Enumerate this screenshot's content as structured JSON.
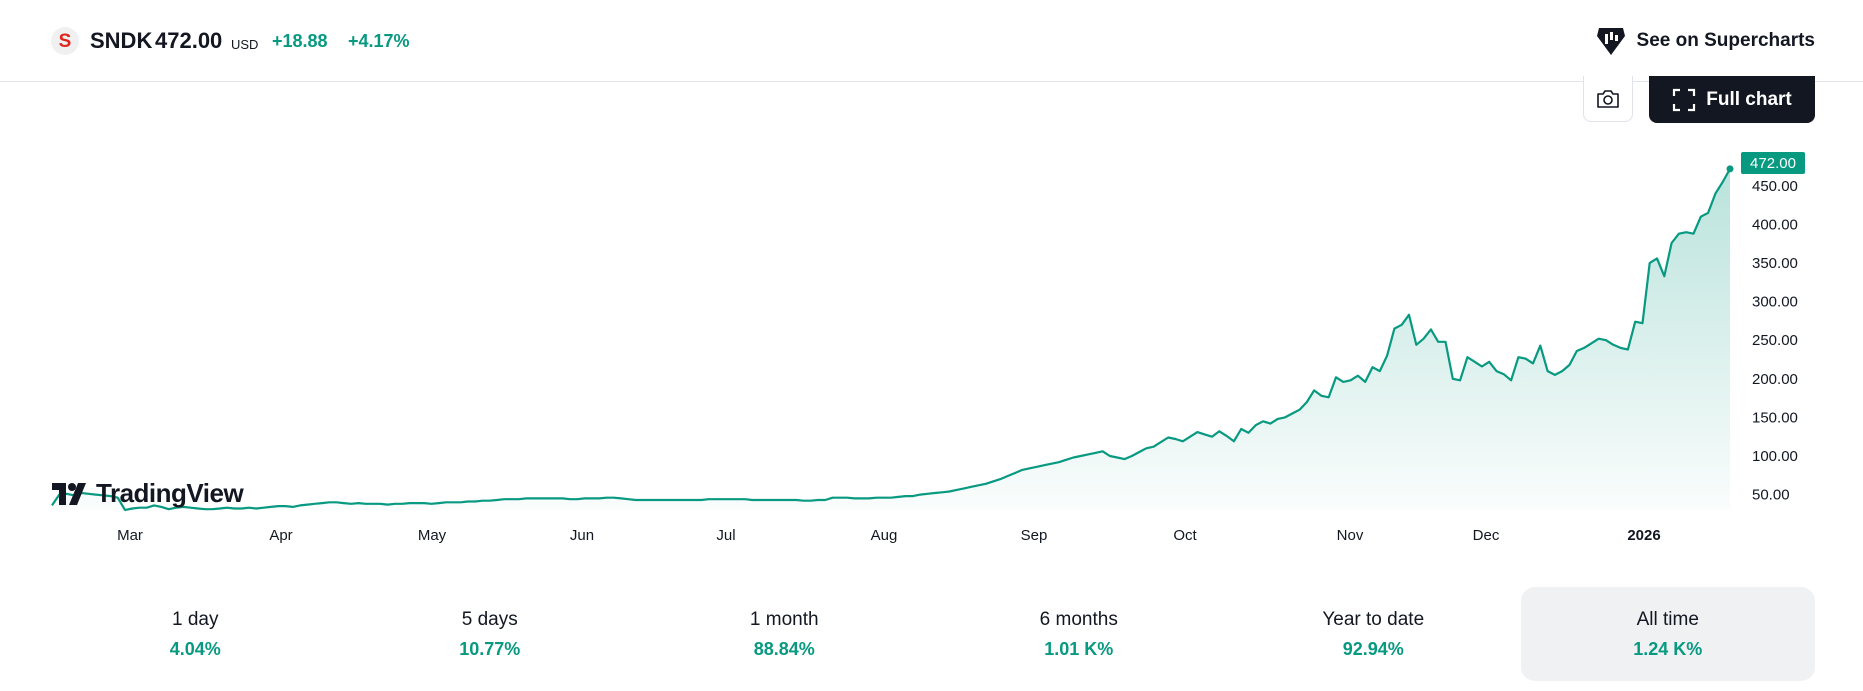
{
  "header": {
    "logo_letter": "S",
    "ticker": "SNDK",
    "price": "472.00",
    "currency": "USD",
    "change": "+18.88",
    "change_percent": "+4.17%",
    "supercharts_label": "See on Supercharts",
    "icons": {
      "supercharts": "tradingview-mark-icon",
      "camera": "camera-icon",
      "fullscreen": "fullscreen-icon"
    }
  },
  "toolbar": {
    "full_chart_label": "Full chart"
  },
  "brand": {
    "logo_text": "TradingView"
  },
  "chart_data": {
    "type": "area",
    "last_price_label": "472.00",
    "x_labels": [
      "Mar",
      "Apr",
      "May",
      "Jun",
      "Jul",
      "Aug",
      "Sep",
      "Oct",
      "Nov",
      "Dec",
      "2026"
    ],
    "y_ticks": [
      "50.00",
      "100.00",
      "150.00",
      "200.00",
      "250.00",
      "300.00",
      "350.00",
      "400.00",
      "450.00"
    ],
    "ylim": [
      30,
      490
    ],
    "series": [
      {
        "color": "#089981",
        "values": [
          36,
          50,
          51,
          49,
          52,
          51,
          50,
          49,
          48,
          46,
          30,
          32,
          33,
          33,
          36,
          34,
          31,
          33,
          34,
          33,
          32,
          31,
          31,
          32,
          33,
          32,
          32,
          33,
          32,
          33,
          34,
          35,
          35,
          34,
          36,
          37,
          38,
          39,
          40,
          40,
          39,
          38,
          39,
          38,
          38,
          38,
          37,
          38,
          38,
          39,
          39,
          39,
          38,
          39,
          40,
          40,
          40,
          41,
          41,
          42,
          42,
          43,
          44,
          44,
          44,
          45,
          45,
          45,
          45,
          45,
          45,
          44,
          44,
          45,
          45,
          45,
          46,
          46,
          45,
          44,
          43,
          43,
          43,
          43,
          43,
          43,
          43,
          43,
          43,
          43,
          44,
          44,
          44,
          44,
          44,
          44,
          43,
          43,
          43,
          43,
          43,
          43,
          43,
          42,
          42,
          43,
          43,
          46,
          46,
          46,
          45,
          45,
          45,
          46,
          46,
          46,
          47,
          48,
          48,
          50,
          51,
          52,
          53,
          54,
          56,
          58,
          60,
          62,
          64,
          67,
          70,
          74,
          78,
          82,
          84,
          86,
          88,
          90,
          92,
          95,
          98,
          100,
          102,
          104,
          106,
          100,
          98,
          96,
          100,
          105,
          110,
          112,
          118,
          124,
          122,
          119,
          125,
          131,
          128,
          125,
          132,
          126,
          119,
          135,
          130,
          140,
          145,
          142,
          148,
          150,
          155,
          160,
          170,
          185,
          178,
          176,
          202,
          196,
          198,
          204,
          196,
          215,
          210,
          230,
          265,
          270,
          283,
          244,
          252,
          264,
          248,
          248,
          200,
          198,
          228,
          222,
          216,
          222,
          210,
          206,
          198,
          228,
          226,
          220,
          243,
          210,
          205,
          210,
          218,
          236,
          240,
          246,
          252,
          250,
          244,
          240,
          238,
          274,
          272,
          350,
          356,
          333,
          376,
          388,
          390,
          388,
          410,
          415,
          440,
          455,
          472
        ]
      }
    ]
  },
  "periods": [
    {
      "label": "1 day",
      "value": "4.04%"
    },
    {
      "label": "5 days",
      "value": "10.77%"
    },
    {
      "label": "1 month",
      "value": "88.84%"
    },
    {
      "label": "6 months",
      "value": "1.01 K%"
    },
    {
      "label": "Year to date",
      "value": "92.94%"
    },
    {
      "label": "All time",
      "value": "1.24 K%"
    }
  ]
}
